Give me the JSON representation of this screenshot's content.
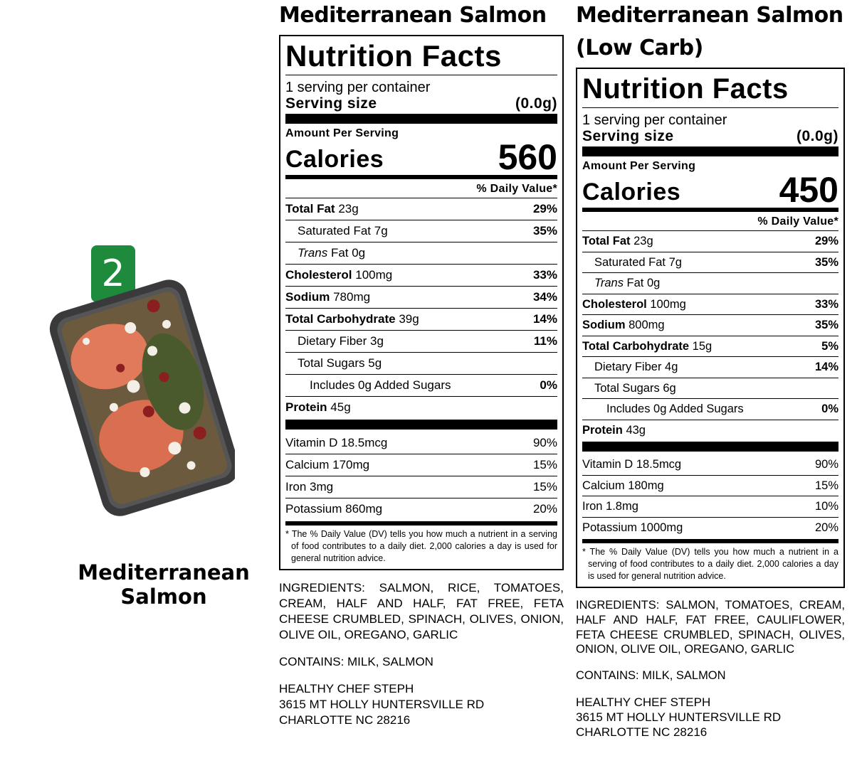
{
  "product": {
    "badge": "2",
    "name": "Mediterranean Salmon"
  },
  "labels": [
    {
      "title": "Mediterranean Salmon",
      "facts": {
        "heading": "Nutrition Facts",
        "servings": "1 serving per container",
        "serving_size_label": "Serving size",
        "serving_size": "(0.0g)",
        "amount_per_serving": "Amount Per Serving",
        "calories_label": "Calories",
        "calories": "560",
        "daily_value_header": "% Daily Value*",
        "nutrients": [
          {
            "name": "Total Fat",
            "amount": "23g",
            "dv": "29%"
          },
          {
            "name": "Saturated Fat",
            "amount": "7g",
            "dv": "35%"
          },
          {
            "name": "Trans",
            "amount": "Fat 0g"
          },
          {
            "name": "Cholesterol",
            "amount": "100mg",
            "dv": "33%"
          },
          {
            "name": "Sodium",
            "amount": "780mg",
            "dv": "34%"
          },
          {
            "name": "Total Carbohydrate",
            "amount": "39g",
            "dv": "14%"
          },
          {
            "name": "Dietary Fiber",
            "amount": "3g",
            "dv": "11%"
          },
          {
            "name": "Total Sugars",
            "amount": "5g"
          },
          {
            "name": "Includes 0g Added Sugars",
            "dv": "0%"
          },
          {
            "name": "Protein",
            "amount": "45g"
          }
        ],
        "vitamins": [
          {
            "name": "Vitamin D",
            "amount": "18.5mcg",
            "dv": "90%"
          },
          {
            "name": "Calcium",
            "amount": "170mg",
            "dv": "15%"
          },
          {
            "name": "Iron",
            "amount": "3mg",
            "dv": "15%"
          },
          {
            "name": "Potassium",
            "amount": "860mg",
            "dv": "20%"
          }
        ],
        "footnote": "* The % Daily Value (DV) tells you how much a nutrient in a serving of food contributes to a daily diet. 2,000 calories a day is used for general nutrition advice."
      },
      "ingredients": "INGREDIENTS: SALMON, RICE, TOMATOES, CREAM, HALF AND HALF, FAT FREE, FETA CHEESE CRUMBLED, SPINACH, OLIVES, ONION, OLIVE OIL, OREGANO, GARLIC",
      "contains": "CONTAINS: MILK, SALMON",
      "address": [
        "HEALTHY CHEF STEPH",
        "3615 MT HOLLY HUNTERSVILLE RD",
        "CHARLOTTE NC 28216"
      ]
    },
    {
      "title": "Mediterranean Salmon (Low Carb)",
      "facts": {
        "heading": "Nutrition Facts",
        "servings": "1 serving per container",
        "serving_size_label": "Serving size",
        "serving_size": "(0.0g)",
        "amount_per_serving": "Amount Per Serving",
        "calories_label": "Calories",
        "calories": "450",
        "daily_value_header": "% Daily Value*",
        "nutrients": [
          {
            "name": "Total Fat",
            "amount": "23g",
            "dv": "29%"
          },
          {
            "name": "Saturated Fat",
            "amount": "7g",
            "dv": "35%"
          },
          {
            "name": "Trans",
            "amount": "Fat 0g"
          },
          {
            "name": "Cholesterol",
            "amount": "100mg",
            "dv": "33%"
          },
          {
            "name": "Sodium",
            "amount": "800mg",
            "dv": "35%"
          },
          {
            "name": "Total Carbohydrate",
            "amount": "15g",
            "dv": "5%"
          },
          {
            "name": "Dietary Fiber",
            "amount": "4g",
            "dv": "14%"
          },
          {
            "name": "Total Sugars",
            "amount": "6g"
          },
          {
            "name": "Includes 0g Added Sugars",
            "dv": "0%"
          },
          {
            "name": "Protein",
            "amount": "43g"
          }
        ],
        "vitamins": [
          {
            "name": "Vitamin D",
            "amount": "18.5mcg",
            "dv": "90%"
          },
          {
            "name": "Calcium",
            "amount": "180mg",
            "dv": "15%"
          },
          {
            "name": "Iron",
            "amount": "1.8mg",
            "dv": "10%"
          },
          {
            "name": "Potassium",
            "amount": "1000mg",
            "dv": "20%"
          }
        ],
        "footnote": "* The % Daily Value (DV) tells you how much a nutrient in a serving of food contributes to a daily diet. 2,000 calories a day is used for general nutrition advice."
      },
      "ingredients": "INGREDIENTS: SALMON, TOMATOES, CREAM, HALF AND HALF, FAT FREE, CAULIFLOWER, FETA CHEESE CRUMBLED, SPINACH, OLIVES, ONION, OLIVE OIL, OREGANO, GARLIC",
      "contains": "CONTAINS: MILK, SALMON",
      "address": [
        "HEALTHY CHEF STEPH",
        "3615 MT HOLLY HUNTERSVILLE RD",
        "CHARLOTTE NC 28216"
      ]
    }
  ]
}
